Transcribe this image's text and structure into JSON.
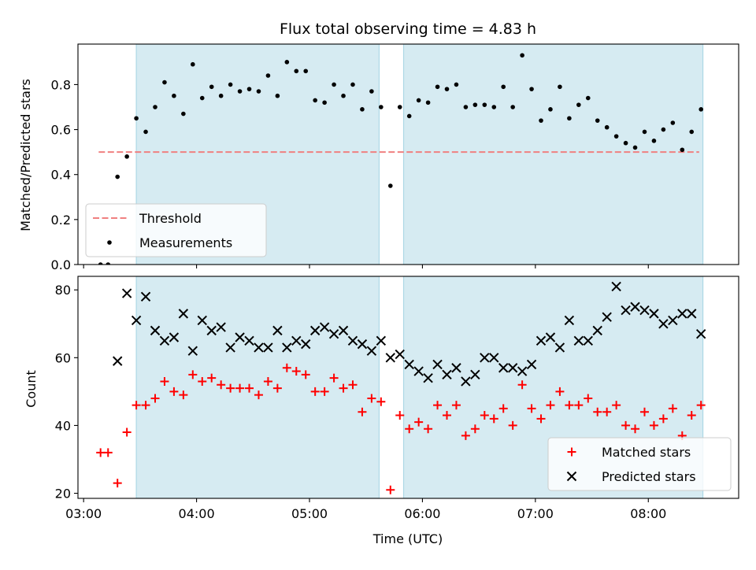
{
  "chart_data": [
    {
      "type": "scatter",
      "title": "Flux total observing time = 4.83 h",
      "xlabel": "",
      "ylabel": "Matched/Predicted stars",
      "xlim": [
        "02:57",
        "08:48"
      ],
      "ylim": [
        0,
        0.98
      ],
      "yticks": [
        "0.0",
        "0.2",
        "0.4",
        "0.6",
        "0.8"
      ],
      "yticks_values": [
        0,
        0.2,
        0.4,
        0.6,
        0.8
      ],
      "xticks_values": [
        "03:00",
        "04:00",
        "05:00",
        "06:00",
        "07:00",
        "08:00"
      ],
      "shaded_intervals": [
        [
          "03:28",
          "05:37"
        ],
        [
          "05:50",
          "08:29"
        ]
      ],
      "threshold": {
        "name": "Threshold",
        "y": 0.5,
        "x_range": [
          "03:08",
          "08:27"
        ],
        "color": "#f08080",
        "style": "dashed"
      },
      "series": [
        {
          "name": "Measurements",
          "color": "#000000",
          "marker": "dot",
          "x": [
            "03:09",
            "03:13",
            "03:18",
            "03:23",
            "03:28",
            "03:33",
            "03:38",
            "03:43",
            "03:48",
            "03:53",
            "03:58",
            "04:03",
            "04:08",
            "04:13",
            "04:18",
            "04:23",
            "04:28",
            "04:33",
            "04:38",
            "04:43",
            "04:48",
            "04:53",
            "04:58",
            "05:03",
            "05:08",
            "05:13",
            "05:18",
            "05:23",
            "05:28",
            "05:33",
            "05:38",
            "05:43",
            "05:48",
            "05:53",
            "05:58",
            "06:03",
            "06:08",
            "06:13",
            "06:18",
            "06:23",
            "06:28",
            "06:33",
            "06:38",
            "06:43",
            "06:48",
            "06:53",
            "06:58",
            "07:03",
            "07:08",
            "07:13",
            "07:18",
            "07:23",
            "07:28",
            "07:33",
            "07:38",
            "07:43",
            "07:48",
            "07:53",
            "07:58",
            "08:03",
            "08:08",
            "08:13",
            "08:18",
            "08:23",
            "08:28"
          ],
          "y": [
            0.0,
            0.0,
            0.39,
            0.48,
            0.65,
            0.59,
            0.7,
            0.81,
            0.75,
            0.67,
            0.89,
            0.74,
            0.79,
            0.75,
            0.8,
            0.77,
            0.78,
            0.77,
            0.84,
            0.75,
            0.9,
            0.86,
            0.86,
            0.73,
            0.72,
            0.8,
            0.75,
            0.8,
            0.69,
            0.77,
            0.7,
            0.35,
            0.7,
            0.66,
            0.73,
            0.72,
            0.79,
            0.78,
            0.8,
            0.7,
            0.71,
            0.71,
            0.7,
            0.79,
            0.7,
            0.93,
            0.78,
            0.64,
            0.69,
            0.79,
            0.65,
            0.71,
            0.74,
            0.64,
            0.61,
            0.57,
            0.54,
            0.52,
            0.59,
            0.55,
            0.6,
            0.63,
            0.51,
            0.59,
            0.69
          ]
        }
      ],
      "legend": {
        "position": "lower-left",
        "entries": [
          "Threshold",
          "Measurements"
        ]
      }
    },
    {
      "type": "scatter",
      "title": "",
      "xlabel": "Time (UTC)",
      "ylabel": "Count",
      "xlim": [
        "02:57",
        "08:48"
      ],
      "ylim": [
        18.5,
        84
      ],
      "yticks": [
        "20",
        "40",
        "60",
        "80"
      ],
      "yticks_values": [
        20,
        40,
        60,
        80
      ],
      "xticks": [
        "03:00",
        "04:00",
        "05:00",
        "06:00",
        "07:00",
        "08:00"
      ],
      "xticks_values": [
        "03:00",
        "04:00",
        "05:00",
        "06:00",
        "07:00",
        "08:00"
      ],
      "shaded_intervals": [
        [
          "03:28",
          "05:37"
        ],
        [
          "05:50",
          "08:29"
        ]
      ],
      "series": [
        {
          "name": "Matched stars",
          "color": "#ff0000",
          "marker": "plus",
          "x": [
            "03:09",
            "03:13",
            "03:18",
            "03:23",
            "03:28",
            "03:33",
            "03:38",
            "03:43",
            "03:48",
            "03:53",
            "03:58",
            "04:03",
            "04:08",
            "04:13",
            "04:18",
            "04:23",
            "04:28",
            "04:33",
            "04:38",
            "04:43",
            "04:48",
            "04:53",
            "04:58",
            "05:03",
            "05:08",
            "05:13",
            "05:18",
            "05:23",
            "05:28",
            "05:33",
            "05:38",
            "05:43",
            "05:48",
            "05:53",
            "05:58",
            "06:03",
            "06:08",
            "06:13",
            "06:18",
            "06:23",
            "06:28",
            "06:33",
            "06:38",
            "06:43",
            "06:48",
            "06:53",
            "06:58",
            "07:03",
            "07:08",
            "07:13",
            "07:18",
            "07:23",
            "07:28",
            "07:33",
            "07:38",
            "07:43",
            "07:48",
            "07:53",
            "07:58",
            "08:03",
            "08:08",
            "08:13",
            "08:18",
            "08:23",
            "08:28"
          ],
          "y": [
            32,
            32,
            23,
            38,
            46,
            46,
            48,
            53,
            50,
            49,
            55,
            53,
            54,
            52,
            51,
            51,
            51,
            49,
            53,
            51,
            57,
            56,
            55,
            50,
            50,
            54,
            51,
            52,
            44,
            48,
            47,
            21,
            43,
            39,
            41,
            39,
            46,
            43,
            46,
            37,
            39,
            43,
            42,
            45,
            40,
            52,
            45,
            42,
            46,
            50,
            46,
            46,
            48,
            44,
            44,
            46,
            40,
            39,
            44,
            40,
            42,
            45,
            37,
            43,
            46
          ]
        },
        {
          "name": "Predicted stars",
          "color": "#000000",
          "marker": "x",
          "x": [
            "03:18",
            "03:23",
            "03:28",
            "03:33",
            "03:38",
            "03:43",
            "03:48",
            "03:53",
            "03:58",
            "04:03",
            "04:08",
            "04:13",
            "04:18",
            "04:23",
            "04:28",
            "04:33",
            "04:38",
            "04:43",
            "04:48",
            "04:53",
            "04:58",
            "05:03",
            "05:08",
            "05:13",
            "05:18",
            "05:23",
            "05:28",
            "05:33",
            "05:38",
            "05:43",
            "05:48",
            "05:53",
            "05:58",
            "06:03",
            "06:08",
            "06:13",
            "06:18",
            "06:23",
            "06:28",
            "06:33",
            "06:38",
            "06:43",
            "06:48",
            "06:53",
            "06:58",
            "07:03",
            "07:08",
            "07:13",
            "07:18",
            "07:23",
            "07:28",
            "07:33",
            "07:38",
            "07:43",
            "07:48",
            "07:53",
            "07:58",
            "08:03",
            "08:08",
            "08:13",
            "08:18",
            "08:23",
            "08:28"
          ],
          "y": [
            59,
            79,
            71,
            78,
            68,
            65,
            66,
            73,
            62,
            71,
            68,
            69,
            63,
            66,
            65,
            63,
            63,
            68,
            63,
            65,
            64,
            68,
            69,
            67,
            68,
            65,
            64,
            62,
            65,
            60,
            61,
            58,
            56,
            54,
            58,
            55,
            57,
            53,
            55,
            60,
            60,
            57,
            57,
            56,
            58,
            65,
            66,
            63,
            71,
            65,
            65,
            68,
            72,
            81,
            74,
            75,
            74,
            73,
            70,
            71,
            73,
            73,
            67
          ]
        }
      ],
      "legend": {
        "position": "lower-right",
        "entries": [
          "Matched stars",
          "Predicted stars"
        ]
      }
    }
  ]
}
